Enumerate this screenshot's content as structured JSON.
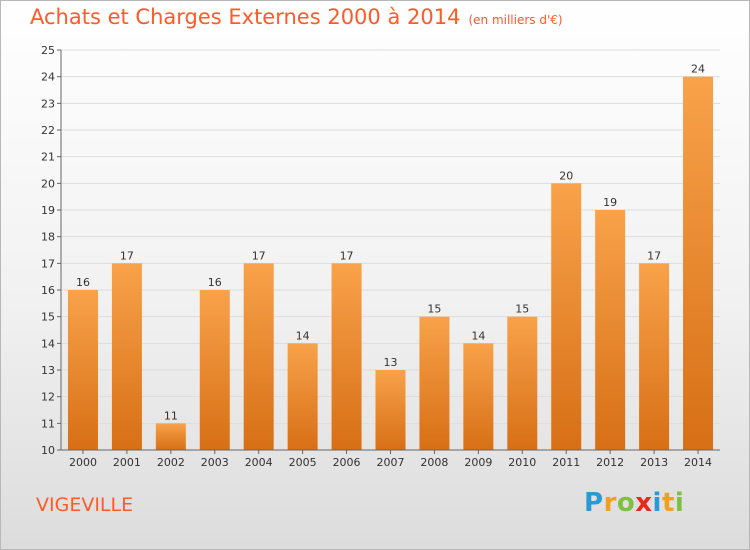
{
  "title": "Achats et Charges Externes 2000 à 2014",
  "subtitle": "(en milliers d'€)",
  "location": "VIGEVILLE",
  "logo": {
    "letters": [
      "P",
      "r",
      "o",
      "x",
      "i",
      "t",
      "i"
    ],
    "colors": [
      "#2a9ad6",
      "#f0a020",
      "#80c040",
      "#e8281a",
      "#2a9ad6",
      "#f0a020",
      "#80c040"
    ]
  },
  "colors": {
    "bar_top": "#f8a24a",
    "bar_bottom": "#d76f15",
    "title": "#ff5a28"
  },
  "chart_data": {
    "type": "bar",
    "title": "Achats et Charges Externes 2000 à 2014",
    "subtitle": "(en milliers d'€)",
    "categories": [
      "2000",
      "2001",
      "2002",
      "2003",
      "2004",
      "2005",
      "2006",
      "2007",
      "2008",
      "2009",
      "2010",
      "2011",
      "2012",
      "2013",
      "2014"
    ],
    "values": [
      16,
      17,
      11,
      16,
      17,
      14,
      17,
      13,
      15,
      14,
      15,
      20,
      19,
      17,
      24
    ],
    "ylim": [
      10,
      25
    ],
    "yticks": [
      10,
      11,
      12,
      13,
      14,
      15,
      16,
      17,
      18,
      19,
      20,
      21,
      22,
      23,
      24,
      25
    ],
    "xlabel": "",
    "ylabel": "",
    "grid": true
  }
}
